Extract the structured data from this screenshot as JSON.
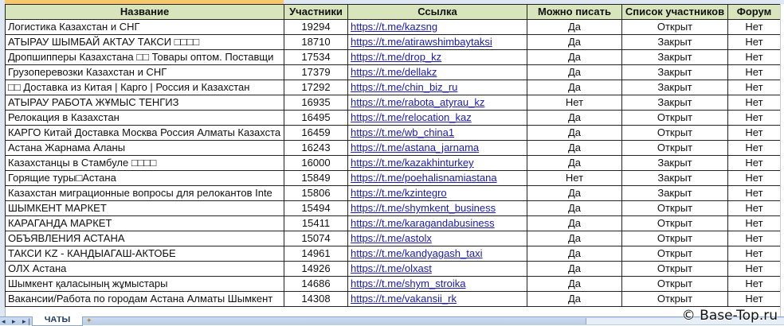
{
  "sheet": {
    "headers": [
      "Название",
      "Участники",
      "Ссылка",
      "Можно писать",
      "Список участников",
      "Форум"
    ],
    "rows": [
      [
        "Логистика Казахстан и СНГ",
        "19294",
        "https://t.me/kazsng",
        "Да",
        "Открыт",
        "Нет"
      ],
      [
        "АТЫРАУ ШЫМБАЙ АКТАУ ТАКСИ □□□□",
        "18710",
        "https://t.me/atirawshimbaytaksi",
        "Да",
        "Закрыт",
        "Нет"
      ],
      [
        "Дропшипперы Казахстана □□ Товары оптом. Поставщи",
        "17534",
        "https://t.me/drop_kz",
        "Да",
        "Закрыт",
        "Нет"
      ],
      [
        "Грузоперевозки Казахстан и СНГ",
        "17379",
        "https://t.me/dellakz",
        "Да",
        "Закрыт",
        "Нет"
      ],
      [
        "□□ Доставка из Китая | Карго | Россия и Казахстан",
        "17292",
        "https://t.me/chin_biz_ru",
        "Да",
        "Закрыт",
        "Нет"
      ],
      [
        "АТЫРАУ РАБОТА ЖҰМЫС ТЕНГИЗ",
        "16935",
        "https://t.me/rabota_atyrau_kz",
        "Нет",
        "Закрыт",
        "Нет"
      ],
      [
        "Релокация в Казахстан",
        "16495",
        "https://t.me/relocation_kaz",
        "Да",
        "Открыт",
        "Нет"
      ],
      [
        "КАРГО Китай Доставка Москва Россия Алматы Казахста",
        "16459",
        "https://t.me/wb_china1",
        "Да",
        "Открыт",
        "Нет"
      ],
      [
        "Астана Жарнама Аланы",
        "16243",
        "https://t.me/astana_jarnama",
        "Да",
        "Открыт",
        "Нет"
      ],
      [
        "Казахстанцы в Стамбуле □□□□",
        "16000",
        "https://t.me/kazakhinturkey",
        "Да",
        "Закрыт",
        "Нет"
      ],
      [
        "Горящие туры□Астана",
        "15849",
        "https://t.me/poehalisnamiastana",
        "Нет",
        "Закрыт",
        "Нет"
      ],
      [
        "Казахстан миграционные вопросы для релокантов Inte",
        "15806",
        "https://t.me/kzintegro",
        "Да",
        "Закрыт",
        "Нет"
      ],
      [
        "ШЫМКЕНТ МАРКЕТ",
        "15494",
        "https://t.me/shymkent_business",
        "Да",
        "Открыт",
        "Нет"
      ],
      [
        "КАРАГАНДА МАРКЕТ",
        "15411",
        "https://t.me/karagandabusiness",
        "Да",
        "Открыт",
        "Нет"
      ],
      [
        "ОБЪЯВЛЕНИЯ АСТАНА",
        "15074",
        "https://t.me/astolx",
        "Да",
        "Открыт",
        "Нет"
      ],
      [
        "ТАКСИ KZ - КАНДЫАГАШ-АКТОБЕ",
        "14961",
        "https://t.me/kandyagash_taxi",
        "Да",
        "Открыт",
        "Нет"
      ],
      [
        "ОЛХ Астана",
        "14926",
        "https://t.me/olxast",
        "Да",
        "Открыт",
        "Нет"
      ],
      [
        "Шымкент қаласының жұмыстары",
        "14686",
        "https://t.me/shym_stroika",
        "Да",
        "Открыт",
        "Нет"
      ],
      [
        "Вакансии/Работа по городам Астана Алматы Шымкент",
        "14308",
        "https://t.me/vakansii_rk",
        "Да",
        "Открыт",
        "Нет"
      ]
    ]
  },
  "tabs": {
    "nav": "◂ ▸ ▸|",
    "sheet_tab": "ЧАТЫ",
    "new_sheet_icon": "new-sheet-icon"
  },
  "watermark": "© Base-Top.ru",
  "colors": {
    "header_bg": "#d8e4bc",
    "link": "#1a1ab0"
  }
}
